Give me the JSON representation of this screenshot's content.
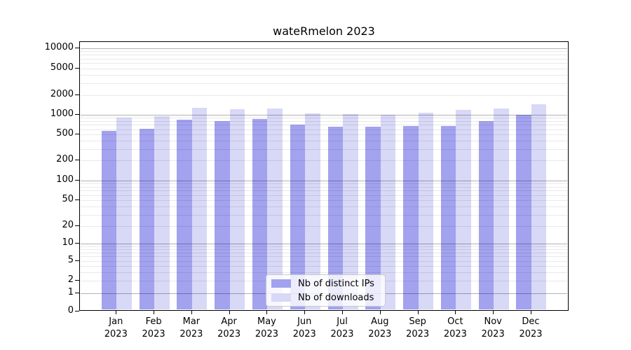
{
  "figure": {
    "title": "wateRmelon 2023"
  },
  "chart_data": {
    "type": "bar",
    "title": "wateRmelon 2023",
    "categories": [
      "Jan 2023",
      "Feb 2023",
      "Mar 2023",
      "Apr 2023",
      "May 2023",
      "Jun 2023",
      "Jul 2023",
      "Aug 2023",
      "Sep 2023",
      "Oct 2023",
      "Nov 2023",
      "Dec 2023"
    ],
    "series": [
      {
        "name": "Nb of distinct IPs",
        "color": "#a2a2ef",
        "values": [
          570,
          610,
          840,
          800,
          860,
          710,
          660,
          660,
          670,
          670,
          800,
          1000
        ]
      },
      {
        "name": "Nb of downloads",
        "color": "#d8d8f7",
        "values": [
          910,
          960,
          1280,
          1220,
          1250,
          1050,
          1020,
          1010,
          1080,
          1190,
          1250,
          1440
        ]
      }
    ],
    "y_scale": "symlog",
    "y_ticks": [
      0,
      1,
      2,
      5,
      10,
      20,
      50,
      100,
      200,
      500,
      1000,
      2000,
      5000,
      10000
    ],
    "ylim": [
      0,
      13000
    ],
    "grid": true,
    "legend_position": "lower-center"
  },
  "legend": {
    "items": [
      {
        "label": "Nb of distinct IPs",
        "color": "#a2a2ef"
      },
      {
        "label": "Nb of downloads",
        "color": "#d8d8f7"
      }
    ]
  }
}
